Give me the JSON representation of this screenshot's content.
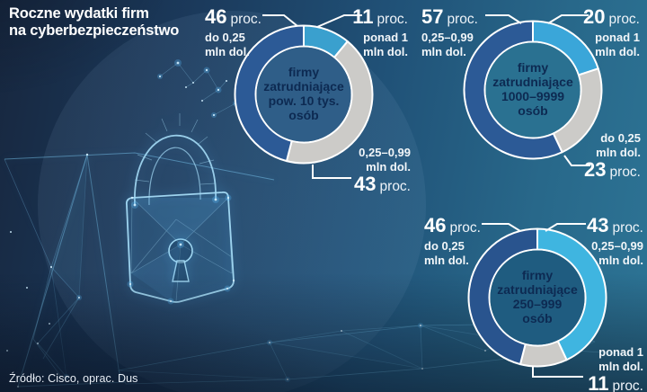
{
  "title": "Roczne wydatki firm\nna cyberbezpieczeństwo",
  "source": "Źródło: Cisco, oprac. Dus",
  "unit_label": "proc.",
  "colors": {
    "dark_blue": "#2c5a96",
    "light_blue": "#3aa0ce",
    "light_blue_bright": "#3fb5e0",
    "gray": "#cccbc8",
    "leader_white": "#ffffff",
    "center_text": "#0d2a52"
  },
  "chart_data": [
    {
      "type": "pie",
      "subtype": "donut",
      "center_label": "firmy\nzatrudniające\npow. 10 tys.\nosób",
      "unit": "proc.",
      "hole_color": "#2f5e88",
      "segments": [
        {
          "label": "ponad 1 mln dol.",
          "value": 11,
          "color": "#3aa0ce"
        },
        {
          "label": "0,25–0,99 mln dol.",
          "value": 43,
          "color": "#cccbc8"
        },
        {
          "label": "do 0,25 mln dol.",
          "value": 46,
          "color": "#2c5a96"
        }
      ],
      "callouts": {
        "top_left": {
          "num": "46",
          "unit": "proc.",
          "desc": "do 0,25\nmln dol."
        },
        "top_right": {
          "num": "11",
          "unit": "proc.",
          "desc": "ponad 1\nmln dol."
        },
        "bottom": {
          "num": "43",
          "unit": "proc.",
          "desc": "0,25–0,99\nmln dol."
        }
      }
    },
    {
      "type": "pie",
      "subtype": "donut",
      "center_label": "firmy\nzatrudniające\n1000–9999\nosób",
      "unit": "proc.",
      "hole_color": "#2a7191",
      "segments": [
        {
          "label": "ponad 1 mln dol.",
          "value": 20,
          "color": "#3aa6d9"
        },
        {
          "label": "do 0,25 mln dol.",
          "value": 23,
          "color": "#cccbc8"
        },
        {
          "label": "0,25–0,99 mln dol.",
          "value": 57,
          "color": "#2c5a96"
        }
      ],
      "callouts": {
        "top_left": {
          "num": "57",
          "unit": "proc.",
          "desc": "0,25–0,99\nmln dol."
        },
        "top_right": {
          "num": "20",
          "unit": "proc.",
          "desc": "ponad 1\nmln dol."
        },
        "bottom": {
          "num": "23",
          "unit": "proc.",
          "desc": "do 0,25\nmln dol."
        }
      }
    },
    {
      "type": "pie",
      "subtype": "donut",
      "center_label": "firmy\nzatrudniające\n250–999\nosób",
      "unit": "proc.",
      "hole_color": "#1f5c80",
      "segments": [
        {
          "label": "0,25–0,99 mln dol.",
          "value": 43,
          "color": "#3fb5e0"
        },
        {
          "label": "ponad 1 mln dol.",
          "value": 11,
          "color": "#cccbc8"
        },
        {
          "label": "do 0,25 mln dol.",
          "value": 46,
          "color": "#29548e"
        }
      ],
      "callouts": {
        "top_left": {
          "num": "46",
          "unit": "proc.",
          "desc": "do 0,25\nmln dol."
        },
        "top_right": {
          "num": "43",
          "unit": "proc.",
          "desc": "0,25–0,99\nmln dol."
        },
        "bottom": {
          "num": "11",
          "unit": "proc.",
          "desc": "ponad 1\nmln dol."
        }
      }
    }
  ]
}
